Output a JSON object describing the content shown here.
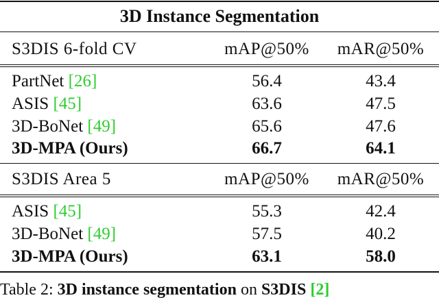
{
  "table": {
    "title": "3D Instance Segmentation",
    "sections": [
      {
        "header": {
          "dataset": "S3DIS 6-fold CV",
          "col1": "mAP@50%",
          "col2": "mAR@50%"
        },
        "rows": [
          {
            "method": "PartNet ",
            "cite": "[26]",
            "map": "56.4",
            "mar": "43.4",
            "bold": false
          },
          {
            "method": "ASIS ",
            "cite": "[45]",
            "map": "63.6",
            "mar": "47.5",
            "bold": false
          },
          {
            "method": "3D-BoNet ",
            "cite": "[49]",
            "map": "65.6",
            "mar": "47.6",
            "bold": false
          },
          {
            "method": "3D-MPA (Ours)",
            "cite": "",
            "map": "66.7",
            "mar": "64.1",
            "bold": true
          }
        ]
      },
      {
        "header": {
          "dataset": "S3DIS Area 5",
          "col1": "mAP@50%",
          "col2": "mAR@50%"
        },
        "rows": [
          {
            "method": "ASIS ",
            "cite": "[45]",
            "map": "55.3",
            "mar": "42.4",
            "bold": false
          },
          {
            "method": "3D-BoNet ",
            "cite": "[49]",
            "map": "57.5",
            "mar": "40.2",
            "bold": false
          },
          {
            "method": "3D-MPA (Ours)",
            "cite": "",
            "map": "63.1",
            "mar": "58.0",
            "bold": true
          }
        ]
      }
    ]
  },
  "caption": {
    "prefix": "Table 2: ",
    "bold_part": "3D instance segmentation",
    "mid": " on ",
    "dataset": "S3DIS ",
    "cite": "[2]"
  }
}
